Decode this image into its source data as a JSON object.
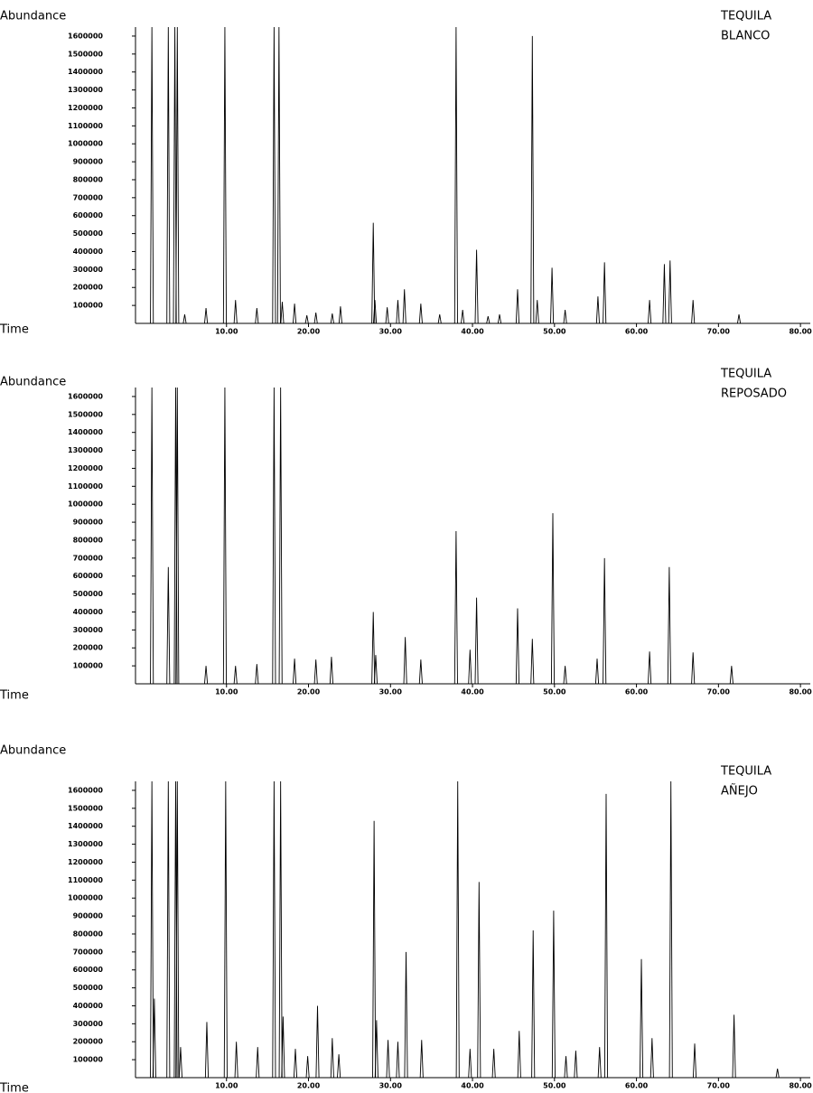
{
  "chart_data": [
    {
      "type": "line",
      "title_lines": [
        "TEQUILA",
        "BLANCO"
      ],
      "y_label": "Abundance",
      "x_label": "Time",
      "color": "#000000",
      "x": [
        0.9,
        2.9,
        3.7,
        4.0,
        4.9,
        7.5,
        9.8,
        11.1,
        13.7,
        15.8,
        16.4,
        16.8,
        18.3,
        19.8,
        20.9,
        22.9,
        23.9,
        27.9,
        28.1,
        29.6,
        30.9,
        31.7,
        33.7,
        36.0,
        38.0,
        38.8,
        40.5,
        41.9,
        43.3,
        45.5,
        47.3,
        47.9,
        49.7,
        51.3,
        55.3,
        56.1,
        61.6,
        63.4,
        64.1,
        66.9,
        72.5
      ],
      "values": [
        1650000,
        1650000,
        1650000,
        1650000,
        50000,
        85000,
        1650000,
        130000,
        85000,
        1650000,
        1650000,
        120000,
        110000,
        45000,
        60000,
        55000,
        95000,
        560000,
        130000,
        90000,
        130000,
        190000,
        110000,
        50000,
        1650000,
        75000,
        410000,
        40000,
        50000,
        190000,
        1600000,
        130000,
        310000,
        75000,
        150000,
        340000,
        130000,
        330000,
        350000,
        130000,
        50000
      ],
      "xlim": [
        -1.1,
        81.2
      ],
      "ylim": [
        0,
        1650000
      ],
      "xticks": [
        {
          "value": 10,
          "label": "10.00"
        },
        {
          "value": 20,
          "label": "20.00"
        },
        {
          "value": 30,
          "label": "30.00"
        },
        {
          "value": 40,
          "label": "40.00"
        },
        {
          "value": 50,
          "label": "50.00"
        },
        {
          "value": 60,
          "label": "60.00"
        },
        {
          "value": 70,
          "label": "70.00"
        },
        {
          "value": 80,
          "label": "80.00"
        }
      ],
      "yticks": [
        100000,
        200000,
        300000,
        400000,
        500000,
        600000,
        700000,
        800000,
        900000,
        1000000,
        1100000,
        1200000,
        1300000,
        1400000,
        1500000,
        1600000
      ]
    },
    {
      "type": "line",
      "title_lines": [
        "TEQUILA",
        "REPOSADO"
      ],
      "y_label": "Abundance",
      "x_label": "Time",
      "color": "#000000",
      "x": [
        0.9,
        2.9,
        3.8,
        4.0,
        7.5,
        9.8,
        11.1,
        13.7,
        15.8,
        16.6,
        18.3,
        20.9,
        22.8,
        27.9,
        28.2,
        31.8,
        33.7,
        38.0,
        39.7,
        40.5,
        45.5,
        47.3,
        49.8,
        51.3,
        55.2,
        56.1,
        61.6,
        64.0,
        66.9,
        71.6
      ],
      "values": [
        1650000,
        650000,
        1650000,
        1650000,
        100000,
        1650000,
        100000,
        110000,
        1650000,
        1650000,
        140000,
        135000,
        150000,
        400000,
        160000,
        260000,
        135000,
        850000,
        190000,
        480000,
        420000,
        250000,
        950000,
        100000,
        140000,
        700000,
        180000,
        650000,
        175000,
        100000
      ],
      "xlim": [
        -1.1,
        81.2
      ],
      "ylim": [
        0,
        1650000
      ],
      "xticks": [
        {
          "value": 10,
          "label": "10.00"
        },
        {
          "value": 20,
          "label": "20.00"
        },
        {
          "value": 30,
          "label": "30.00"
        },
        {
          "value": 40,
          "label": "40.00"
        },
        {
          "value": 50,
          "label": "50.00"
        },
        {
          "value": 60,
          "label": "60.00"
        },
        {
          "value": 70,
          "label": "70.00"
        },
        {
          "value": 80,
          "label": "80.00"
        }
      ],
      "yticks": [
        100000,
        200000,
        300000,
        400000,
        500000,
        600000,
        700000,
        800000,
        900000,
        1000000,
        1100000,
        1200000,
        1300000,
        1400000,
        1500000,
        1600000
      ]
    },
    {
      "type": "line",
      "title_lines": [
        "TEQUILA",
        "AÑEJO"
      ],
      "y_label": "Abundance",
      "x_label": "Time",
      "color": "#000000",
      "x": [
        0.9,
        1.2,
        2.9,
        3.8,
        4.0,
        4.4,
        7.6,
        9.9,
        11.2,
        13.8,
        15.8,
        16.6,
        16.9,
        18.4,
        19.9,
        21.1,
        22.9,
        23.7,
        28.0,
        28.3,
        29.7,
        30.9,
        31.9,
        33.8,
        38.2,
        39.7,
        40.8,
        42.6,
        45.7,
        47.4,
        49.9,
        51.4,
        52.6,
        55.5,
        56.3,
        60.6,
        61.9,
        64.2,
        67.1,
        71.9,
        77.2
      ],
      "values": [
        1650000,
        440000,
        1650000,
        1650000,
        1650000,
        170000,
        310000,
        1650000,
        200000,
        170000,
        1650000,
        1650000,
        340000,
        160000,
        120000,
        400000,
        220000,
        130000,
        1430000,
        320000,
        210000,
        200000,
        700000,
        210000,
        1650000,
        160000,
        1090000,
        160000,
        260000,
        820000,
        930000,
        120000,
        150000,
        170000,
        1580000,
        660000,
        220000,
        1650000,
        190000,
        350000,
        50000
      ],
      "xlim": [
        -1.1,
        81.2
      ],
      "ylim": [
        0,
        1650000
      ],
      "xticks": [
        {
          "value": 10,
          "label": "10.00"
        },
        {
          "value": 20,
          "label": "20.00"
        },
        {
          "value": 30,
          "label": "30.00"
        },
        {
          "value": 40,
          "label": "40.00"
        },
        {
          "value": 50,
          "label": "50.00"
        },
        {
          "value": 60,
          "label": "60.00"
        },
        {
          "value": 70,
          "label": "70.00"
        },
        {
          "value": 80,
          "label": "80.00"
        }
      ],
      "yticks": [
        100000,
        200000,
        300000,
        400000,
        500000,
        600000,
        700000,
        800000,
        900000,
        1000000,
        1100000,
        1200000,
        1300000,
        1400000,
        1500000,
        1600000
      ]
    }
  ]
}
